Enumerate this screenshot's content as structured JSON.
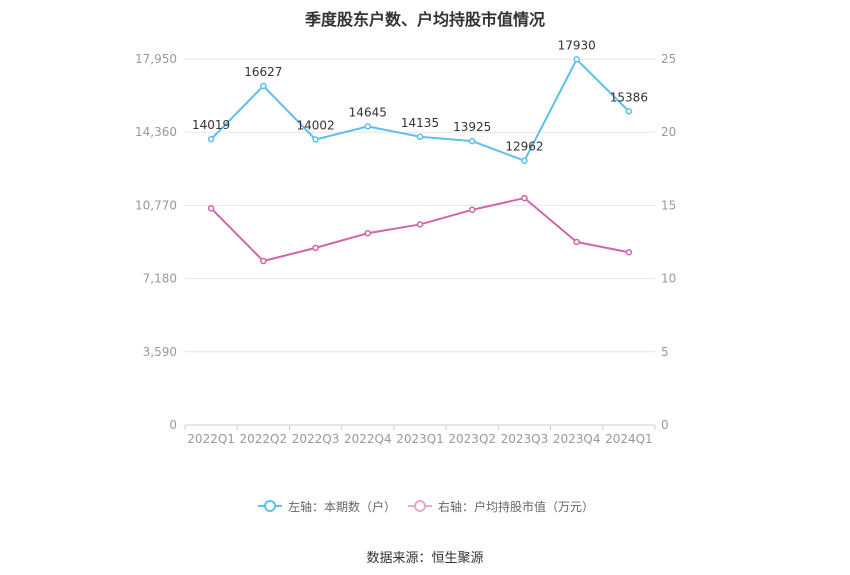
{
  "title": "季度股东户数、户均持股市值情况",
  "source": "数据来源：恒生聚源",
  "colors": {
    "left_series": "#5bc0eb",
    "right_series": "#d065a8",
    "grid": "#e6e6e6",
    "axis_text": "#999999"
  },
  "chart_data": {
    "type": "line",
    "categories": [
      "2022Q1",
      "2022Q2",
      "2022Q3",
      "2022Q4",
      "2023Q1",
      "2023Q2",
      "2023Q3",
      "2023Q4",
      "2024Q1"
    ],
    "y_left": {
      "ticks": [
        0,
        3590,
        7180,
        10770,
        14360,
        17950
      ],
      "tick_labels": [
        "0",
        "3,590",
        "7,180",
        "10,770",
        "14,360",
        "17,950"
      ],
      "ylim": [
        0,
        17950
      ]
    },
    "y_right": {
      "ticks": [
        0,
        5,
        10,
        15,
        20,
        25
      ],
      "tick_labels": [
        "0",
        "5",
        "10",
        "15",
        "20",
        "25"
      ],
      "ylim": [
        0,
        25
      ]
    },
    "grid": true,
    "legend_position": "bottom",
    "series": [
      {
        "name": "左轴：本期数（户）",
        "axis": "left",
        "color": "#5bc0eb",
        "values": [
          14019,
          16627,
          14002,
          14645,
          14135,
          13925,
          12962,
          17930,
          15386
        ],
        "labels": [
          "14019",
          "16627",
          "14002",
          "14645",
          "14135",
          "13925",
          "12962",
          "17930",
          "15386"
        ]
      },
      {
        "name": "右轴：户均持股市值（万元）",
        "axis": "right",
        "color": "#d065a8",
        "values": [
          14.8,
          11.2,
          12.1,
          13.1,
          13.7,
          14.7,
          15.5,
          12.5,
          11.8
        ]
      }
    ]
  }
}
